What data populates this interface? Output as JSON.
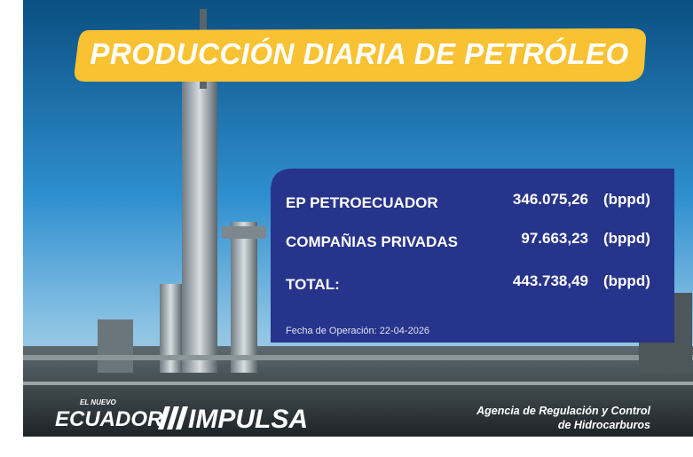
{
  "header": {
    "title": "PRODUCCIÓN DIARIA DE PETRÓLEO"
  },
  "table": {
    "rows": [
      {
        "label": "EP PETROECUADOR",
        "value": "346.075,26",
        "unit": "(bppd)"
      },
      {
        "label": "COMPAÑIAS PRIVADAS",
        "value": "97.663,23",
        "unit": "(bppd)"
      },
      {
        "label": "TOTAL:",
        "value": "443.738,49",
        "unit": "(bppd)"
      }
    ],
    "date": "Fecha de Operación: 22-04-2026"
  },
  "footer": {
    "logo_small": "EL NUEVO",
    "logo_left": "ECUADOR",
    "logo_right": "IMPULSA",
    "agency": [
      "Agencia de Regulación y Control",
      "de Hidrocarburos"
    ]
  }
}
